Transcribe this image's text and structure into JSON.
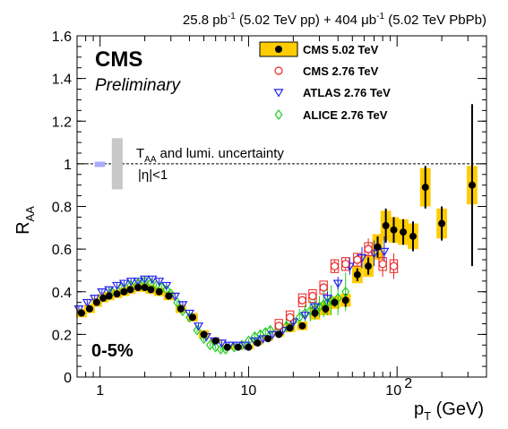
{
  "header": {
    "lumi_a": "25.8 pb",
    "lumi_a_exp": "-1",
    "lumi_a_tail": " (5.02 TeV pp) + 404 ",
    "lumi_mu": "μb",
    "lumi_b_exp": "-1",
    "lumi_b_tail": " (5.02 TeV PbPb)"
  },
  "labels": {
    "experiment": "CMS",
    "status": "Preliminary",
    "centrality": "0-5%",
    "uncertainty_line1": "and lumi. uncertainty",
    "uncertainty_taa": "T",
    "uncertainty_taa_sub": "AA",
    "uncertainty_line2": "|η|<1"
  },
  "colors": {
    "cms502_box": "#ffcc00",
    "cms276": "#ee2222",
    "atlas": "#2222ee",
    "alice": "#22cc22",
    "lumi_box": "#aaaaff",
    "taa_box": "#c8c8c8"
  },
  "chart_data": {
    "type": "scatter",
    "xlabel_main": "p",
    "xlabel_sub": "T",
    "xlabel_unit": " (GeV)",
    "ylabel_main": "R",
    "ylabel_sub": "AA",
    "xscale": "log",
    "xlim": [
      0.7,
      400
    ],
    "ylim": [
      0,
      1.6
    ],
    "x_ticks": [
      {
        "value": 1,
        "label": "1"
      },
      {
        "value": 10,
        "label": "10"
      },
      {
        "value": 100,
        "label": "10",
        "exp": "2"
      }
    ],
    "y_ticks": [
      {
        "value": 0,
        "label": "0"
      },
      {
        "value": 0.2,
        "label": "0.2"
      },
      {
        "value": 0.4,
        "label": "0.4"
      },
      {
        "value": 0.6,
        "label": "0.6"
      },
      {
        "value": 0.8,
        "label": "0.8"
      },
      {
        "value": 1.0,
        "label": "1"
      },
      {
        "value": 1.2,
        "label": "1.2"
      },
      {
        "value": 1.4,
        "label": "1.4"
      },
      {
        "value": 1.6,
        "label": "1.6"
      }
    ],
    "reference_line": 1.0,
    "legend": [
      {
        "name": "CMS 5.02 TeV",
        "marker": "filled-circle-box"
      },
      {
        "name": "CMS 2.76 TeV",
        "marker": "open-circle"
      },
      {
        "name": "ATLAS 2.76 TeV",
        "marker": "open-triangle-down"
      },
      {
        "name": "ALICE 2.76 TeV",
        "marker": "open-diamond"
      }
    ],
    "series": [
      {
        "name": "CMS 5.02 TeV",
        "x": [
          0.75,
          0.85,
          0.95,
          1.05,
          1.15,
          1.3,
          1.45,
          1.6,
          1.8,
          2.0,
          2.2,
          2.5,
          2.9,
          3.5,
          4.2,
          5.0,
          6.0,
          7.2,
          8.5,
          10.0,
          11.5,
          13.5,
          16.0,
          19.0,
          23.0,
          28.0,
          33.0,
          38.0,
          45.0,
          54.0,
          64.0,
          74.0,
          84.0,
          95.0,
          110.0,
          128.0,
          155.0,
          200.0,
          320.0
        ],
        "y": [
          0.3,
          0.32,
          0.35,
          0.37,
          0.38,
          0.39,
          0.4,
          0.41,
          0.42,
          0.42,
          0.41,
          0.4,
          0.38,
          0.32,
          0.28,
          0.2,
          0.17,
          0.14,
          0.14,
          0.14,
          0.16,
          0.18,
          0.2,
          0.23,
          0.24,
          0.3,
          0.32,
          0.35,
          0.36,
          0.48,
          0.52,
          0.61,
          0.71,
          0.69,
          0.68,
          0.66,
          0.89,
          0.72,
          0.9
        ],
        "stat": [
          0.01,
          0.01,
          0.01,
          0.01,
          0.01,
          0.01,
          0.01,
          0.01,
          0.01,
          0.01,
          0.01,
          0.01,
          0.01,
          0.01,
          0.01,
          0.01,
          0.01,
          0.01,
          0.01,
          0.01,
          0.01,
          0.01,
          0.01,
          0.01,
          0.01,
          0.02,
          0.02,
          0.02,
          0.03,
          0.03,
          0.04,
          0.05,
          0.08,
          0.06,
          0.06,
          0.07,
          0.1,
          0.08,
          0.38
        ],
        "syst": [
          0.02,
          0.02,
          0.02,
          0.02,
          0.02,
          0.02,
          0.02,
          0.02,
          0.02,
          0.02,
          0.02,
          0.02,
          0.02,
          0.02,
          0.02,
          0.02,
          0.01,
          0.01,
          0.01,
          0.01,
          0.01,
          0.01,
          0.01,
          0.02,
          0.02,
          0.03,
          0.03,
          0.03,
          0.03,
          0.04,
          0.05,
          0.06,
          0.07,
          0.06,
          0.06,
          0.06,
          0.09,
          0.07,
          0.09
        ]
      },
      {
        "name": "CMS 2.76 TeV",
        "x": [
          16.0,
          19.0,
          23.0,
          27.0,
          32.0,
          38.0,
          45.0,
          54.0,
          64.0,
          80.0,
          95.0
        ],
        "y": [
          0.24,
          0.28,
          0.36,
          0.38,
          0.42,
          0.52,
          0.53,
          0.55,
          0.6,
          0.53,
          0.52
        ],
        "stat": [
          0.01,
          0.01,
          0.02,
          0.02,
          0.02,
          0.03,
          0.03,
          0.03,
          0.05,
          0.06,
          0.06
        ]
      },
      {
        "name": "ATLAS 2.76 TeV",
        "x": [
          0.72,
          0.82,
          0.92,
          1.03,
          1.15,
          1.3,
          1.45,
          1.62,
          1.8,
          2.0,
          2.25,
          2.5,
          2.8,
          3.2,
          3.6,
          4.0,
          4.6,
          5.2,
          5.9,
          6.6,
          7.4,
          8.3,
          9.5,
          11.0,
          12.5,
          14.5,
          17.0,
          20.0,
          24.0,
          28.0,
          34.0,
          40.0,
          48.0,
          58.0,
          70.0,
          82.0
        ],
        "y": [
          0.32,
          0.35,
          0.37,
          0.4,
          0.41,
          0.43,
          0.44,
          0.45,
          0.45,
          0.46,
          0.46,
          0.45,
          0.43,
          0.38,
          0.34,
          0.3,
          0.24,
          0.19,
          0.17,
          0.16,
          0.15,
          0.15,
          0.15,
          0.17,
          0.18,
          0.2,
          0.22,
          0.26,
          0.29,
          0.33,
          0.37,
          0.44,
          0.52,
          0.56,
          0.58,
          0.59
        ],
        "stat": [
          0.01,
          0.01,
          0.01,
          0.01,
          0.01,
          0.01,
          0.01,
          0.01,
          0.01,
          0.01,
          0.01,
          0.01,
          0.01,
          0.01,
          0.01,
          0.01,
          0.01,
          0.01,
          0.01,
          0.01,
          0.01,
          0.01,
          0.01,
          0.01,
          0.01,
          0.01,
          0.01,
          0.02,
          0.02,
          0.02,
          0.03,
          0.03,
          0.04,
          0.05,
          0.06,
          0.07
        ]
      },
      {
        "name": "ALICE 2.76 TeV",
        "x": [
          1.2,
          1.4,
          1.6,
          1.8,
          2.0,
          2.2,
          2.4,
          2.6,
          2.8,
          3.0,
          3.3,
          3.6,
          4.0,
          4.5,
          5.0,
          5.5,
          6.0,
          6.5,
          7.0,
          8.0,
          9.0,
          10.0,
          11.0,
          12.0,
          13.0,
          14.0,
          16.0,
          18.0,
          20.0,
          22.0,
          24.0,
          26.0,
          28.0,
          30.0,
          32.0,
          34.0,
          36.0,
          40.0,
          45.0
        ],
        "y": [
          0.4,
          0.42,
          0.43,
          0.44,
          0.45,
          0.44,
          0.43,
          0.42,
          0.41,
          0.39,
          0.35,
          0.31,
          0.28,
          0.22,
          0.18,
          0.15,
          0.14,
          0.13,
          0.13,
          0.14,
          0.15,
          0.17,
          0.19,
          0.2,
          0.21,
          0.22,
          0.23,
          0.24,
          0.26,
          0.28,
          0.3,
          0.31,
          0.32,
          0.33,
          0.34,
          0.35,
          0.36,
          0.37,
          0.4
        ],
        "stat": [
          0.01,
          0.01,
          0.01,
          0.01,
          0.01,
          0.01,
          0.01,
          0.01,
          0.01,
          0.01,
          0.01,
          0.01,
          0.01,
          0.01,
          0.01,
          0.01,
          0.01,
          0.01,
          0.01,
          0.01,
          0.01,
          0.01,
          0.02,
          0.02,
          0.02,
          0.02,
          0.03,
          0.03,
          0.03,
          0.04,
          0.04,
          0.05,
          0.05,
          0.05,
          0.06,
          0.06,
          0.07,
          0.08,
          0.09
        ]
      }
    ]
  }
}
